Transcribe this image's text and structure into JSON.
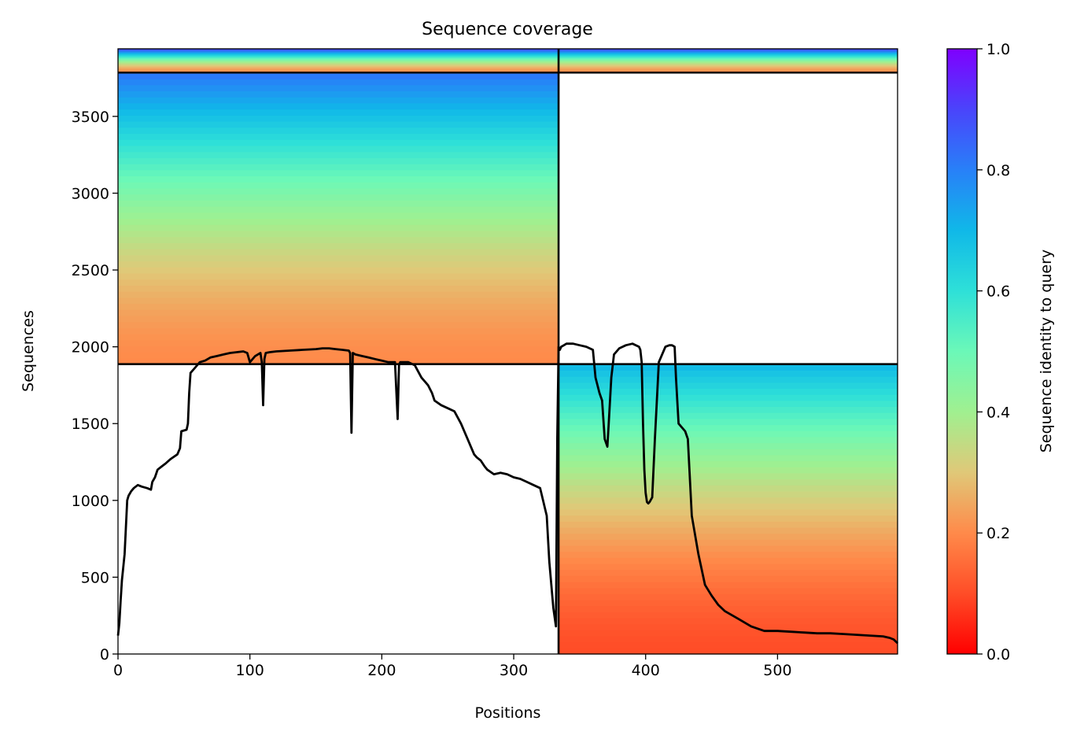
{
  "chart_data": {
    "type": "heatmap",
    "title": "Sequence coverage",
    "xlabel": "Positions",
    "ylabel": "Sequences",
    "xlim": [
      0,
      591
    ],
    "ylim": [
      0,
      3940
    ],
    "x_ticks": [
      0,
      100,
      200,
      300,
      400,
      500
    ],
    "y_ticks": [
      0,
      500,
      1000,
      1500,
      2000,
      2500,
      3000,
      3500
    ],
    "colorbar": {
      "label": "Sequence identity to query",
      "colormap": "rainbow_r",
      "range": [
        0,
        1
      ],
      "ticks": [
        "0.0",
        "0.2",
        "0.4",
        "0.6",
        "0.8",
        "1.0"
      ]
    },
    "chain_boundary_x": 334,
    "block_boundaries_y": [
      1887,
      3785
    ],
    "blocks": [
      {
        "name": "paired",
        "x": [
          0,
          591
        ],
        "y": [
          3785,
          3940
        ],
        "identity_bottom": 0.2,
        "identity_top": 0.9
      },
      {
        "name": "chain A unpaired",
        "x": [
          0,
          334
        ],
        "y": [
          1887,
          3785
        ],
        "identity_bottom": 0.2,
        "identity_top": 0.82
      },
      {
        "name": "chain B unpaired",
        "x": [
          334,
          591
        ],
        "y": [
          0,
          1887
        ],
        "identity_bottom": 0.1,
        "identity_top": 0.7
      }
    ],
    "coverage_line": {
      "x": [
        0,
        1,
        2,
        3,
        5,
        7,
        8,
        10,
        12,
        15,
        18,
        22,
        25,
        26,
        28,
        30,
        33,
        36,
        40,
        45,
        47,
        48,
        52,
        53,
        54,
        55,
        58,
        60,
        62,
        66,
        70,
        75,
        80,
        85,
        90,
        95,
        98,
        100,
        104,
        108,
        109,
        110,
        111,
        112,
        115,
        120,
        130,
        140,
        150,
        155,
        160,
        165,
        170,
        175,
        176,
        177,
        178,
        180,
        185,
        190,
        195,
        200,
        205,
        210,
        212,
        213,
        214,
        215,
        220,
        225,
        230,
        235,
        238,
        240,
        245,
        250,
        255,
        260,
        265,
        270,
        272,
        275,
        278,
        280,
        285,
        290,
        295,
        300,
        305,
        310,
        315,
        320,
        325,
        327,
        330,
        332,
        333,
        334,
        335,
        336,
        338,
        340,
        345,
        350,
        355,
        360,
        362,
        365,
        367,
        369,
        371,
        372,
        374,
        376,
        380,
        385,
        390,
        395,
        396,
        397,
        398,
        399,
        400,
        401,
        402,
        403,
        405,
        407,
        410,
        415,
        418,
        420,
        422,
        423,
        425,
        430,
        432,
        435,
        440,
        445,
        450,
        455,
        460,
        470,
        480,
        490,
        500,
        510,
        520,
        530,
        540,
        550,
        560,
        570,
        580,
        585,
        588,
        591
      ],
      "y": [
        120,
        200,
        350,
        480,
        650,
        1000,
        1030,
        1060,
        1080,
        1100,
        1090,
        1080,
        1070,
        1120,
        1150,
        1200,
        1220,
        1240,
        1270,
        1300,
        1340,
        1450,
        1460,
        1500,
        1700,
        1830,
        1860,
        1880,
        1900,
        1910,
        1930,
        1940,
        1950,
        1960,
        1965,
        1970,
        1960,
        1900,
        1940,
        1960,
        1900,
        1620,
        1920,
        1960,
        1965,
        1970,
        1975,
        1980,
        1985,
        1990,
        1990,
        1985,
        1980,
        1975,
        1960,
        1440,
        1960,
        1950,
        1940,
        1930,
        1920,
        1910,
        1900,
        1900,
        1530,
        1880,
        1900,
        1900,
        1900,
        1880,
        1800,
        1750,
        1700,
        1650,
        1620,
        1600,
        1580,
        1500,
        1400,
        1300,
        1280,
        1260,
        1220,
        1200,
        1170,
        1180,
        1170,
        1150,
        1140,
        1120,
        1100,
        1080,
        900,
        600,
        300,
        180,
        1400,
        2000,
        1980,
        2000,
        2010,
        2020,
        2020,
        2010,
        2000,
        1980,
        1800,
        1700,
        1650,
        1400,
        1350,
        1500,
        1800,
        1950,
        1990,
        2010,
        2020,
        2000,
        1980,
        1900,
        1500,
        1200,
        1050,
        990,
        980,
        990,
        1020,
        1400,
        1900,
        2000,
        2010,
        2010,
        2000,
        1800,
        1500,
        1450,
        1400,
        900,
        650,
        450,
        380,
        320,
        280,
        230,
        180,
        150,
        150,
        145,
        140,
        135,
        135,
        130,
        125,
        120,
        115,
        105,
        95,
        70
      ]
    }
  }
}
